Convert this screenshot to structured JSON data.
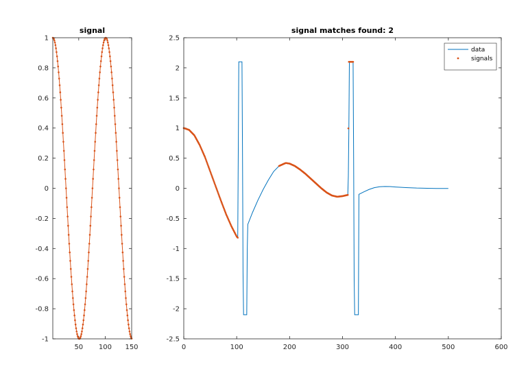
{
  "colors": {
    "data_line": "#0072BD",
    "signal": "#D95319",
    "axes": "#262626",
    "background": "#ffffff"
  },
  "chart_data": [
    {
      "id": "signal",
      "type": "line",
      "title": "signal",
      "xlabel": "",
      "ylabel": "",
      "xlim": [
        1,
        150
      ],
      "ylim": [
        -1,
        1
      ],
      "xticks": [
        50,
        100,
        150
      ],
      "yticks": [
        -1,
        -0.8,
        -0.6,
        -0.4,
        -0.2,
        0,
        0.2,
        0.4,
        0.6,
        0.8,
        1
      ],
      "grid": false,
      "series": [
        {
          "style": "line+dots",
          "color": "#D95319",
          "function": "cos(2*pi*(x-1)/100)",
          "x_range": [
            1,
            150
          ],
          "x_step": 1,
          "points": [
            [
              1,
              1
            ],
            [
              26,
              0
            ],
            [
              51,
              -1
            ],
            [
              76,
              0
            ],
            [
              101,
              1
            ],
            [
              126,
              0
            ],
            [
              150,
              -1
            ]
          ]
        }
      ]
    },
    {
      "id": "matches",
      "type": "line",
      "title": "signal matches found: 2",
      "xlabel": "",
      "ylabel": "",
      "xlim": [
        0,
        600
      ],
      "ylim": [
        -2.5,
        2.5
      ],
      "xticks": [
        0,
        100,
        200,
        300,
        400,
        500,
        600
      ],
      "yticks": [
        -2.5,
        -2,
        -1.5,
        -1,
        -0.5,
        0,
        0.5,
        1,
        1.5,
        2,
        2.5
      ],
      "grid": false,
      "legend": {
        "position": "top-right",
        "entries": [
          {
            "label": "data",
            "marker": "line",
            "color": "#0072BD"
          },
          {
            "label": "signals",
            "marker": "dot",
            "color": "#D95319"
          }
        ]
      },
      "series": [
        {
          "name": "data",
          "style": "line",
          "color": "#0072BD",
          "points": [
            [
              0,
              1.0
            ],
            [
              10,
              0.97
            ],
            [
              20,
              0.88
            ],
            [
              30,
              0.72
            ],
            [
              40,
              0.52
            ],
            [
              50,
              0.28
            ],
            [
              60,
              0.04
            ],
            [
              70,
              -0.2
            ],
            [
              80,
              -0.43
            ],
            [
              90,
              -0.63
            ],
            [
              100,
              -0.8
            ],
            [
              102,
              -0.82
            ],
            [
              103,
              0.6
            ],
            [
              104,
              2.1
            ],
            [
              110,
              2.1
            ],
            [
              111,
              0.6
            ],
            [
              112,
              -1.4
            ],
            [
              113,
              -2.1
            ],
            [
              119,
              -2.1
            ],
            [
              120,
              -1.0
            ],
            [
              121,
              -0.6
            ],
            [
              130,
              -0.4
            ],
            [
              140,
              -0.2
            ],
            [
              150,
              -0.02
            ],
            [
              160,
              0.14
            ],
            [
              170,
              0.28
            ],
            [
              180,
              0.37
            ],
            [
              190,
              0.41
            ],
            [
              193,
              0.42
            ],
            [
              200,
              0.41
            ],
            [
              210,
              0.37
            ],
            [
              220,
              0.31
            ],
            [
              230,
              0.24
            ],
            [
              240,
              0.16
            ],
            [
              250,
              0.08
            ],
            [
              260,
              0.0
            ],
            [
              270,
              -0.07
            ],
            [
              280,
              -0.12
            ],
            [
              290,
              -0.14
            ],
            [
              300,
              -0.13
            ],
            [
              310,
              -0.11
            ],
            [
              311,
              0.2
            ],
            [
              312,
              1.0
            ],
            [
              313,
              2.1
            ],
            [
              320,
              2.1
            ],
            [
              321,
              0.5
            ],
            [
              322,
              -1.5
            ],
            [
              323,
              -2.1
            ],
            [
              330,
              -2.1
            ],
            [
              331,
              -0.1
            ],
            [
              340,
              -0.06
            ],
            [
              350,
              -0.02
            ],
            [
              360,
              0.01
            ],
            [
              370,
              0.025
            ],
            [
              380,
              0.03
            ],
            [
              390,
              0.028
            ],
            [
              400,
              0.022
            ],
            [
              420,
              0.012
            ],
            [
              440,
              0.004
            ],
            [
              460,
              0.0
            ],
            [
              480,
              -0.003
            ],
            [
              500,
              -0.003
            ]
          ]
        },
        {
          "name": "signals",
          "style": "dots",
          "color": "#D95319",
          "points": [
            [
              0,
              1.0
            ],
            [
              10,
              0.97
            ],
            [
              20,
              0.88
            ],
            [
              30,
              0.72
            ],
            [
              40,
              0.52
            ],
            [
              50,
              0.28
            ],
            [
              60,
              0.04
            ],
            [
              70,
              -0.2
            ],
            [
              80,
              -0.43
            ],
            [
              90,
              -0.63
            ],
            [
              100,
              -0.8
            ],
            [
              102,
              -0.82
            ],
            [
              180,
              0.37
            ],
            [
              190,
              0.41
            ],
            [
              193,
              0.42
            ],
            [
              200,
              0.41
            ],
            [
              210,
              0.37
            ],
            [
              220,
              0.31
            ],
            [
              230,
              0.24
            ],
            [
              240,
              0.16
            ],
            [
              250,
              0.08
            ],
            [
              260,
              0.0
            ],
            [
              270,
              -0.07
            ],
            [
              280,
              -0.12
            ],
            [
              290,
              -0.14
            ],
            [
              300,
              -0.13
            ],
            [
              310,
              -0.11
            ],
            [
              312,
              2.1
            ],
            [
              316,
              2.1
            ],
            [
              320,
              2.1
            ]
          ]
        }
      ]
    }
  ]
}
